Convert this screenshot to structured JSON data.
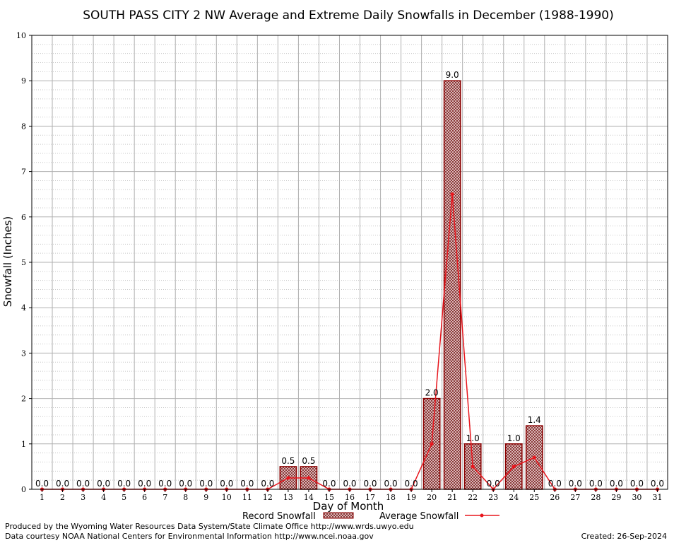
{
  "chart_data": {
    "type": "bar",
    "title": "SOUTH PASS CITY 2 NW Average and Extreme Daily Snowfalls in December (1988-1990)",
    "xlabel": "Day of Month",
    "ylabel": "Snowfall (Inches)",
    "ylim": [
      0,
      10
    ],
    "yticks": [
      "0",
      "1",
      "2",
      "3",
      "4",
      "5",
      "6",
      "7",
      "8",
      "9",
      "10"
    ],
    "categories": [
      "1",
      "2",
      "3",
      "4",
      "5",
      "6",
      "7",
      "8",
      "9",
      "10",
      "11",
      "12",
      "13",
      "14",
      "15",
      "16",
      "17",
      "18",
      "19",
      "20",
      "21",
      "22",
      "23",
      "24",
      "25",
      "26",
      "27",
      "28",
      "29",
      "30",
      "31"
    ],
    "grid": true,
    "legend_placement": "bottom",
    "series": [
      {
        "name": "Record Snowfall",
        "type": "bar",
        "color": "#8b0000",
        "values": [
          0,
          0,
          0,
          0,
          0,
          0,
          0,
          0,
          0,
          0,
          0,
          0,
          0.5,
          0.5,
          0,
          0,
          0,
          0,
          0,
          2.0,
          9.0,
          1.0,
          0,
          1.0,
          1.4,
          0,
          0,
          0,
          0,
          0,
          0
        ],
        "labels": [
          "0.0",
          "0.0",
          "0.0",
          "0.0",
          "0.0",
          "0.0",
          "0.0",
          "0.0",
          "0.0",
          "0.0",
          "0.0",
          "0.0",
          "0.5",
          "0.5",
          "0.0",
          "0.0",
          "0.0",
          "0.0",
          "0.0",
          "2.0",
          "9.0",
          "1.0",
          "0.0",
          "1.0",
          "1.4",
          "0.0",
          "0.0",
          "0.0",
          "0.0",
          "0.0",
          "0.0"
        ]
      },
      {
        "name": "Average Snowfall",
        "type": "line",
        "color": "#e8161d",
        "values": [
          0,
          0,
          0,
          0,
          0,
          0,
          0,
          0,
          0,
          0,
          0,
          0,
          0.25,
          0.25,
          0,
          0,
          0,
          0,
          0,
          1.0,
          6.5,
          0.5,
          0,
          0.5,
          0.7,
          0,
          0,
          0,
          0,
          0,
          0
        ]
      }
    ]
  },
  "footer": {
    "left_line1": "Produced by the Wyoming Water Resources Data System/State Climate Office http://www.wrds.uwyo.edu",
    "left_line2": "Data courtesy NOAA National Centers for Environmental Information http://www.ncei.noaa.gov",
    "created": "Created:  26-Sep-2024"
  }
}
